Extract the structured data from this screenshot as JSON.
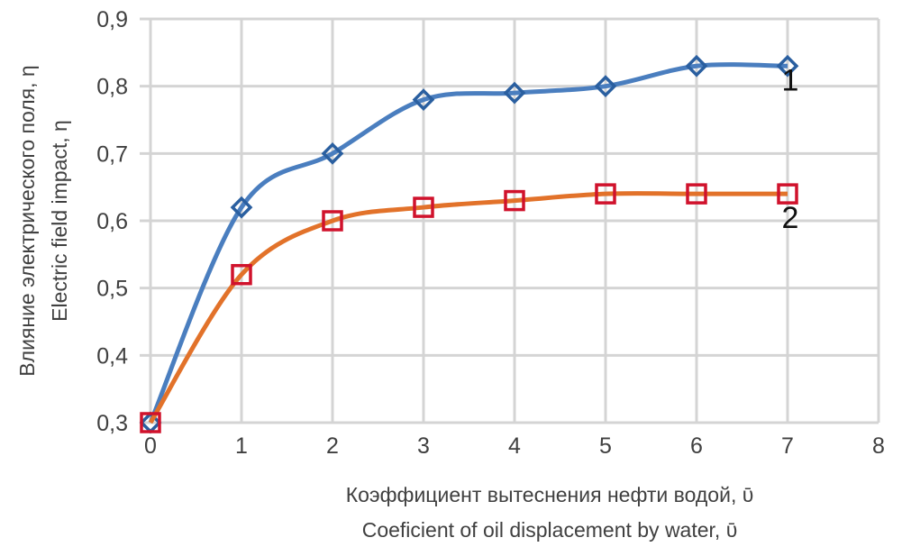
{
  "chart_data": {
    "type": "line",
    "smoothed": true,
    "xlabel": [
      "Коэффициент вытеснения нефти водой, ῡ",
      "Coeficient of oil displacement by water, ῡ"
    ],
    "ylabel": [
      "Влияние электрического поля, η",
      "Electric field impact, η"
    ],
    "xlim": [
      0,
      8
    ],
    "ylim": [
      0.3,
      0.9
    ],
    "x_ticks": [
      "0",
      "1",
      "2",
      "3",
      "4",
      "5",
      "6",
      "7",
      "8"
    ],
    "y_ticks": [
      "0,3",
      "0,4",
      "0,5",
      "0,6",
      "0,7",
      "0,8",
      "0,9"
    ],
    "grid": true,
    "x": [
      0,
      1,
      2,
      3,
      4,
      5,
      6,
      7
    ],
    "series": [
      {
        "name": "1",
        "values": [
          0.3,
          0.62,
          0.7,
          0.78,
          0.79,
          0.8,
          0.83,
          0.83
        ],
        "line_color": "#4a7ebf",
        "marker": "diamond",
        "marker_color": "#2a5fa0"
      },
      {
        "name": "2",
        "values": [
          0.3,
          0.52,
          0.6,
          0.62,
          0.63,
          0.64,
          0.64,
          0.64
        ],
        "line_color": "#e2722a",
        "marker": "square",
        "marker_color": "#d0122c"
      }
    ]
  }
}
